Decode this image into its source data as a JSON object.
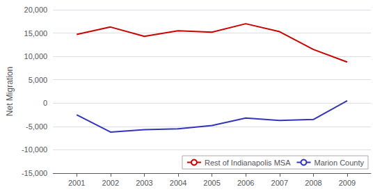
{
  "chart_data": {
    "type": "line",
    "x": [
      2001,
      2002,
      2003,
      2004,
      2005,
      2006,
      2007,
      2008,
      2009
    ],
    "series": [
      {
        "name": "Rest of Indianapolis MSA",
        "color": "#cc0000",
        "values": [
          14700,
          16300,
          14300,
          15500,
          15200,
          17000,
          15300,
          11500,
          8800
        ]
      },
      {
        "name": "Marion County",
        "color": "#3333bb",
        "values": [
          -2500,
          -6200,
          -5700,
          -5500,
          -4800,
          -3200,
          -3700,
          -3500,
          500
        ]
      }
    ],
    "ylabel": "Net Migration",
    "xlim": [
      2000.3,
      2009.7
    ],
    "xticks": [
      2001,
      2002,
      2003,
      2004,
      2005,
      2006,
      2007,
      2008,
      2009
    ],
    "ylim": [
      -15000,
      20000
    ],
    "yticks": [
      {
        "value": -15000,
        "label": "-15,000"
      },
      {
        "value": -10000,
        "label": "-10,000"
      },
      {
        "value": -5000,
        "label": "-5,000"
      },
      0,
      {
        "value": 5000,
        "label": "5,000"
      },
      {
        "value": 10000,
        "label": "10,000"
      },
      {
        "value": 15000,
        "label": "15,000"
      },
      {
        "value": 20000,
        "label": "20,000"
      }
    ],
    "grid": true,
    "legend": "lower right"
  }
}
